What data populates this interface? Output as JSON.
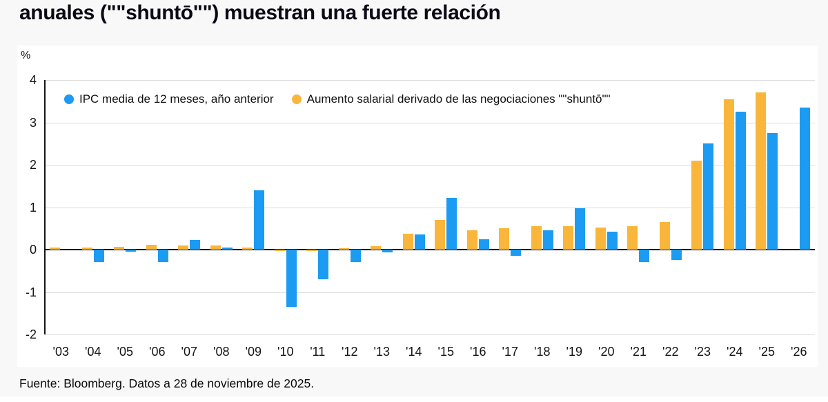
{
  "title": "anuales (\"\"shuntō\"\") muestran una fuerte relación",
  "footer": "Fuente: Bloomberg. Datos a 28 de noviembre de 2025.",
  "colors": {
    "blue": "#1b9bf2",
    "yellow": "#f9b63b",
    "grid": "#dbdbdb",
    "axis": "#141414",
    "panel_bg": "#ffffff",
    "page_bg": "#f8f8f9"
  },
  "chart_data": {
    "type": "bar",
    "title": "anuales (\"\"shuntō\"\") muestran una fuerte relación",
    "unit_label": "%",
    "ylabel": "%",
    "xlabel": "",
    "ylim": [
      -2,
      4
    ],
    "yticks": [
      4,
      3,
      2,
      1,
      0,
      -1,
      -2
    ],
    "grid": true,
    "legend_position": "top-left-inside",
    "categories": [
      "'03",
      "'04",
      "'05",
      "'06",
      "'07",
      "'08",
      "'09",
      "'10",
      "'11",
      "'12",
      "'13",
      "'14",
      "'15",
      "'16",
      "'17",
      "'18",
      "'19",
      "'20",
      "'21",
      "'22",
      "'23",
      "'24",
      "'25",
      "'26"
    ],
    "series": [
      {
        "name": "IPC media de 12 meses, año anterior",
        "color_key": "blue",
        "side": "right",
        "values": [
          0,
          -0.3,
          -0.05,
          -0.3,
          0.23,
          0.05,
          1.4,
          -1.35,
          -0.7,
          -0.3,
          -0.07,
          0.35,
          1.22,
          0.25,
          -0.15,
          0.45,
          0.98,
          0.42,
          -0.3,
          -0.25,
          2.5,
          3.25,
          2.75,
          3.35
        ]
      },
      {
        "name": "Aumento salarial derivado de las negociaciones \"\"shuntō\"\"",
        "color_key": "yellow",
        "side": "left",
        "values": [
          0.05,
          0.05,
          0.07,
          0.12,
          0.1,
          0.1,
          0.05,
          -0.03,
          -0.03,
          0.03,
          0.08,
          0.38,
          0.7,
          0.45,
          0.5,
          0.55,
          0.55,
          0.52,
          0.55,
          0.65,
          2.1,
          3.55,
          3.7,
          null
        ]
      }
    ]
  }
}
